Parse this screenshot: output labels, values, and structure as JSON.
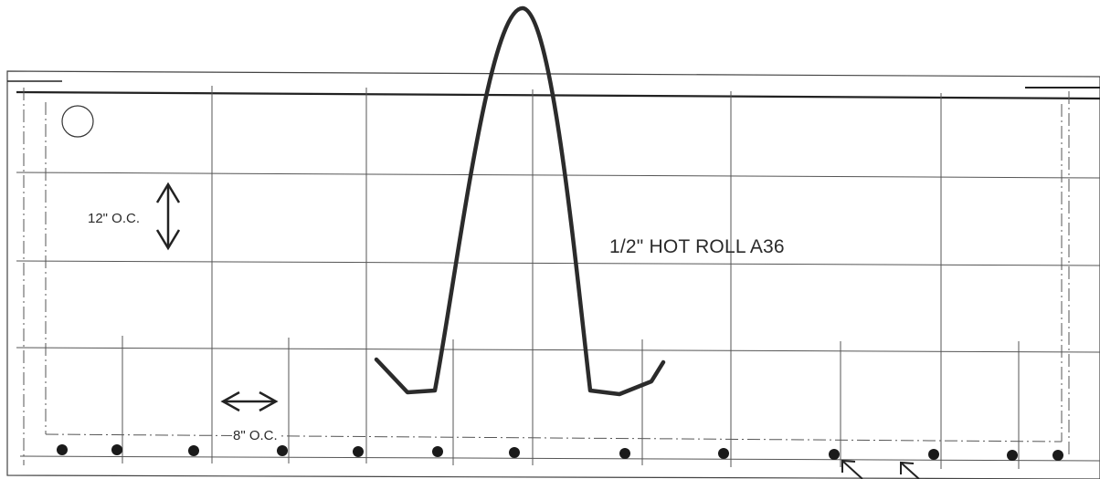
{
  "labels": {
    "vertical_spacing": "12\" O.C.",
    "horizontal_spacing": "8\" O.C.",
    "material": "1/2\" HOT ROLL A36"
  },
  "colors": {
    "line": "#2b2b2b",
    "grid": "#555555",
    "background": "#ffffff"
  }
}
